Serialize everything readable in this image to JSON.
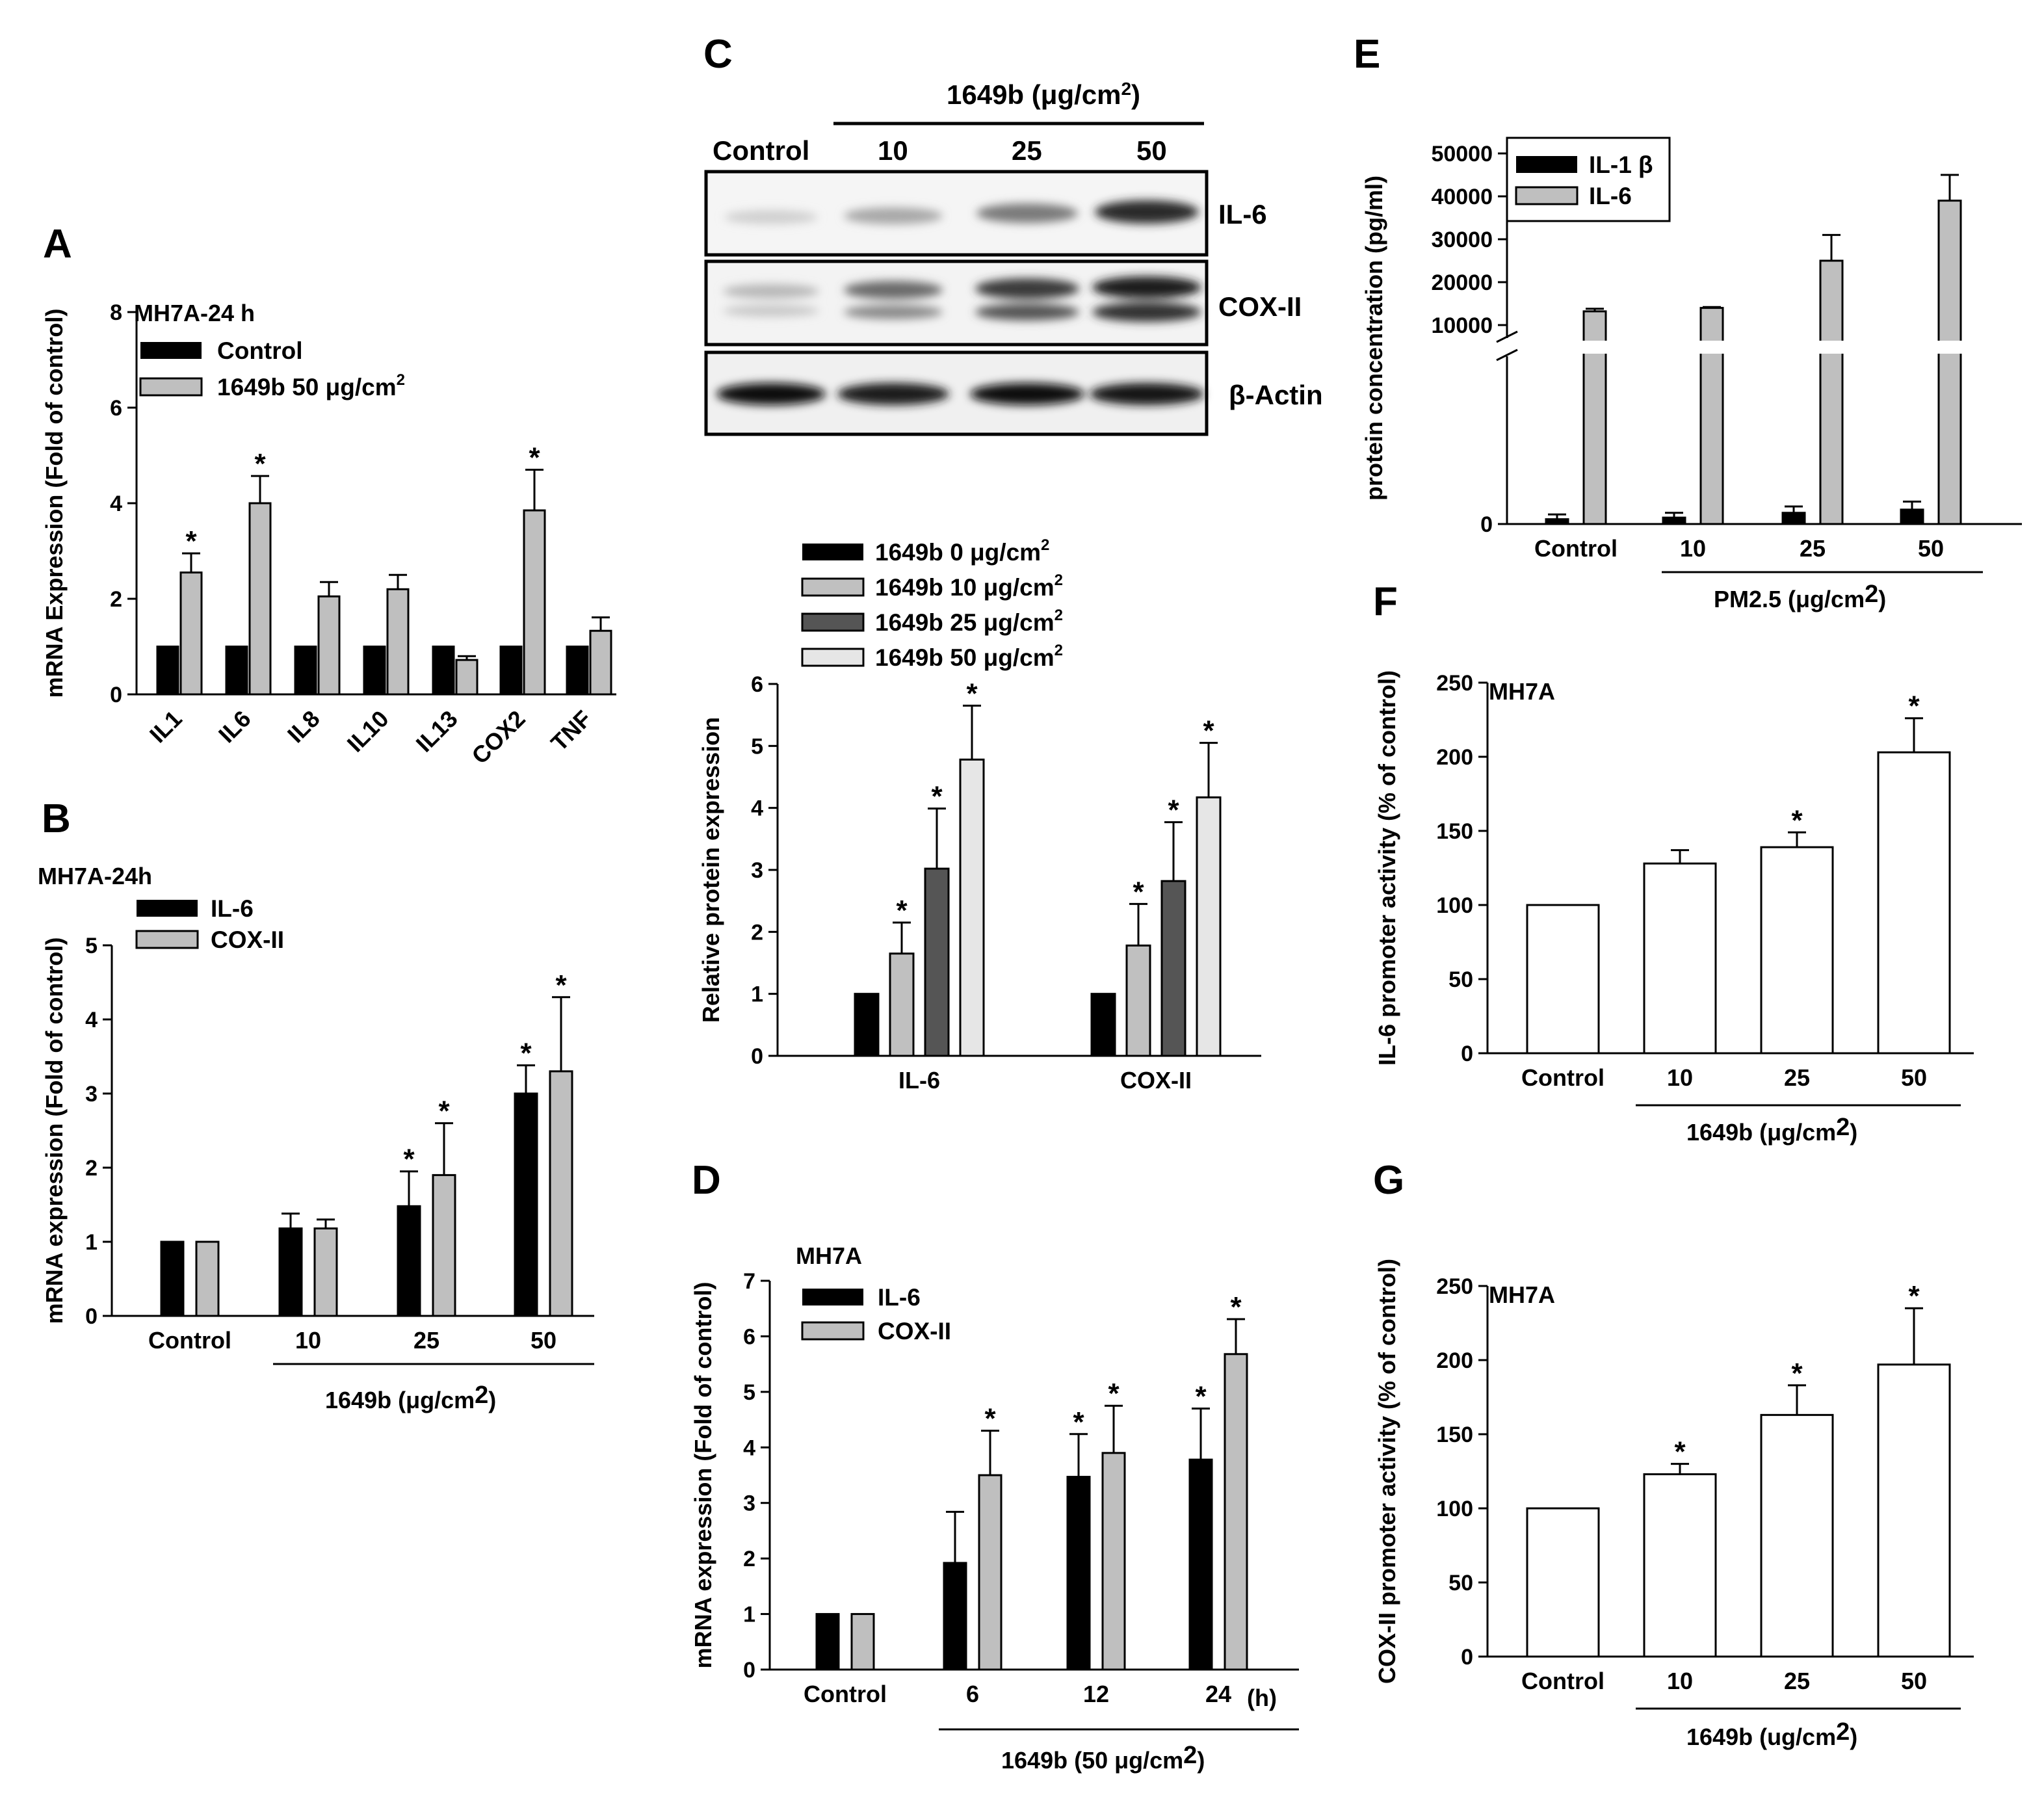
{
  "colors": {
    "black": "#000000",
    "gray": "#bfbfbf",
    "dark_gray": "#555555",
    "light_gray": "#e6e6e6",
    "white": "#ffffff"
  },
  "panels": {
    "A": {
      "label": "A",
      "subtitle": "MH7A-24 h"
    },
    "B": {
      "label": "B",
      "subtitle": "MH7A-24h",
      "group_label_pre": "1649b (",
      "group_label_unit": "μg/cm",
      "group_label_sup": "2",
      "group_label_post": ")"
    },
    "C": {
      "label": "C",
      "treatment_label": "1649b (μg/cm",
      "treatment_sup": "2",
      "treatment_post": ")",
      "lanes": [
        "Control",
        "10",
        "25",
        "50"
      ],
      "blot_rows": [
        "IL-6",
        "COX-II",
        "β-Actin"
      ]
    },
    "D": {
      "label": "D",
      "subtitle": "MH7A",
      "group_label_pre": "1649b (50 ",
      "group_label_unit": "μg/cm",
      "group_label_sup": "2",
      "group_label_post": ")",
      "unit_suffix": "(h)"
    },
    "E": {
      "label": "E",
      "group_label": "PM2.5 (μg/cm",
      "group_label_sup": "2",
      "group_label_post": ")"
    },
    "F": {
      "label": "F",
      "subtitle": "MH7A",
      "group_label": "1649b (μg/cm",
      "group_label_sup": "2",
      "group_label_post": ")"
    },
    "G": {
      "label": "G",
      "subtitle": "MH7A",
      "group_label": "1649b (ug/cm",
      "group_label_sup": "2",
      "group_label_post": ")"
    }
  },
  "chart_data": [
    {
      "panel": "A",
      "type": "bar",
      "ylabel": "mRNA Expression (Fold of control)",
      "ylim": [
        0,
        8
      ],
      "yticks": [
        0,
        2,
        4,
        6,
        8
      ],
      "categories": [
        "IL1",
        "IL6",
        "IL8",
        "IL10",
        "IL13",
        "COX2",
        "TNF"
      ],
      "series": [
        {
          "name": "Control",
          "color": "#000000",
          "values": [
            1,
            1,
            1,
            1,
            1,
            1,
            1
          ],
          "errors": [
            0,
            0,
            0,
            0,
            0,
            0,
            0
          ]
        },
        {
          "name": "1649b 50 μg/cm2",
          "color": "#bfbfbf",
          "values": [
            2.55,
            4.0,
            2.05,
            2.2,
            0.72,
            3.85,
            1.33
          ],
          "errors": [
            0.4,
            0.57,
            0.3,
            0.3,
            0.08,
            0.85,
            0.28
          ]
        }
      ],
      "significant": [
        [
          false,
          false,
          false,
          false,
          false,
          false,
          false
        ],
        [
          true,
          true,
          false,
          false,
          false,
          true,
          false
        ]
      ]
    },
    {
      "panel": "B",
      "type": "bar",
      "ylabel": "mRNA expression (Fold of control)",
      "ylim": [
        0,
        5
      ],
      "yticks": [
        0,
        1,
        2,
        3,
        4,
        5
      ],
      "categories": [
        "Control",
        "10",
        "25",
        "50"
      ],
      "series": [
        {
          "name": "IL-6",
          "color": "#000000",
          "values": [
            1,
            1.18,
            1.48,
            3.0
          ],
          "errors": [
            0,
            0.2,
            0.47,
            0.38
          ]
        },
        {
          "name": "COX-II",
          "color": "#bfbfbf",
          "values": [
            1,
            1.18,
            1.9,
            3.3
          ],
          "errors": [
            0,
            0.12,
            0.7,
            1.0
          ]
        }
      ],
      "significant": [
        [
          false,
          false,
          true,
          true
        ],
        [
          false,
          false,
          true,
          true
        ]
      ]
    },
    {
      "panel": "C",
      "type": "bar",
      "ylabel": "Relative protein expression",
      "ylim": [
        0,
        6
      ],
      "yticks": [
        0,
        1,
        2,
        3,
        4,
        5,
        6
      ],
      "categories": [
        "IL-6",
        "COX-II"
      ],
      "series": [
        {
          "name": "1649b 0 μg/cm2",
          "color": "#000000",
          "values": [
            1,
            1
          ],
          "errors": [
            0,
            0
          ]
        },
        {
          "name": "1649b 10 μg/cm2",
          "color": "#c0c0c0",
          "values": [
            1.65,
            1.78
          ],
          "errors": [
            0.5,
            0.67
          ]
        },
        {
          "name": "1649b 25 μg/cm2",
          "color": "#555555",
          "values": [
            3.02,
            2.82
          ],
          "errors": [
            0.97,
            0.95
          ]
        },
        {
          "name": "1649b 50 μg/cm2",
          "color": "#e6e6e6",
          "values": [
            4.78,
            4.17
          ],
          "errors": [
            0.87,
            0.88
          ]
        }
      ],
      "significant": [
        [
          false,
          false
        ],
        [
          true,
          true
        ],
        [
          true,
          true
        ],
        [
          true,
          true
        ]
      ]
    },
    {
      "panel": "D",
      "type": "bar",
      "ylabel": "mRNA expression (Fold of control)",
      "ylim": [
        0,
        7
      ],
      "yticks": [
        0,
        1,
        2,
        3,
        4,
        5,
        6,
        7
      ],
      "categories": [
        "Control",
        "6",
        "12",
        "24"
      ],
      "series": [
        {
          "name": "IL-6",
          "color": "#000000",
          "values": [
            1,
            1.92,
            3.47,
            3.78
          ],
          "errors": [
            0,
            0.92,
            0.77,
            0.92
          ]
        },
        {
          "name": "COX-II",
          "color": "#bfbfbf",
          "values": [
            1,
            3.5,
            3.9,
            5.68
          ],
          "errors": [
            0,
            0.8,
            0.85,
            0.63
          ]
        }
      ],
      "significant": [
        [
          false,
          false,
          true,
          true
        ],
        [
          false,
          true,
          true,
          true
        ]
      ]
    },
    {
      "panel": "E",
      "type": "bar",
      "ylabel": "protein concentration (pg/ml)",
      "scale": "broken",
      "upper_yticks": [
        10000,
        20000,
        30000,
        40000,
        50000
      ],
      "lower_ytick": 0,
      "categories": [
        "Control",
        "10",
        "25",
        "50"
      ],
      "series": [
        {
          "name": "IL-1 β",
          "color": "#000000",
          "values": [
            300,
            400,
            700,
            900
          ],
          "errors": [
            300,
            300,
            400,
            500
          ]
        },
        {
          "name": "IL-6",
          "color": "#bfbfbf",
          "values": [
            13200,
            14000,
            25000,
            39000
          ],
          "errors": [
            600,
            200,
            6000,
            6000
          ]
        }
      ]
    },
    {
      "panel": "F",
      "type": "bar",
      "ylabel": "IL-6 promoter activity (% of control)",
      "ylim": [
        0,
        250
      ],
      "yticks": [
        0,
        50,
        100,
        150,
        200,
        250
      ],
      "categories": [
        "Control",
        "10",
        "25",
        "50"
      ],
      "series": [
        {
          "name": "",
          "color": "#ffffff",
          "values": [
            100,
            128,
            139,
            203
          ],
          "errors": [
            0,
            9,
            10,
            23
          ]
        }
      ],
      "significant": [
        [
          false,
          false,
          true,
          true
        ]
      ]
    },
    {
      "panel": "G",
      "type": "bar",
      "ylabel": "COX-II promoter activity (% of control)",
      "ylim": [
        0,
        250
      ],
      "yticks": [
        0,
        50,
        100,
        150,
        200,
        250
      ],
      "categories": [
        "Control",
        "10",
        "25",
        "50"
      ],
      "series": [
        {
          "name": "",
          "color": "#ffffff",
          "values": [
            100,
            123,
            163,
            197
          ],
          "errors": [
            0,
            7,
            20,
            38
          ]
        }
      ],
      "significant": [
        [
          false,
          true,
          true,
          true
        ]
      ]
    }
  ]
}
